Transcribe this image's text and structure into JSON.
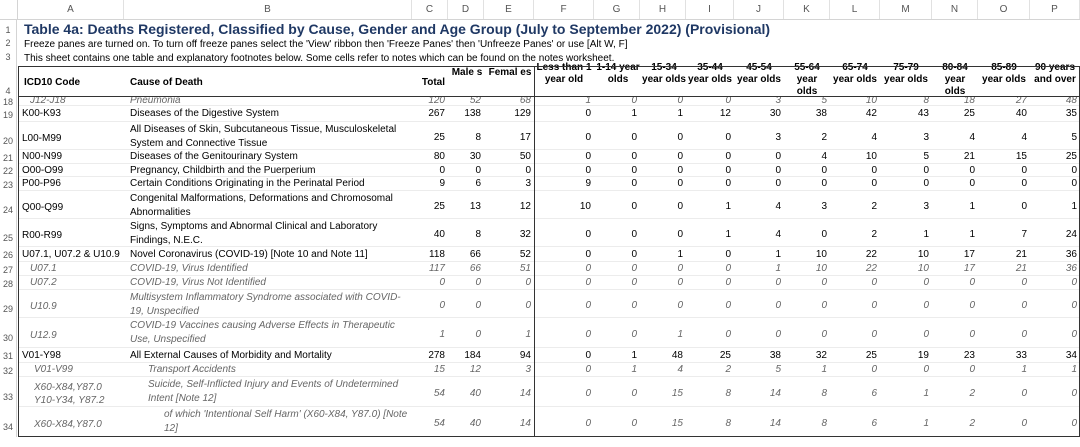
{
  "sheet": {
    "col_letters": [
      "A",
      "B",
      "C",
      "D",
      "E",
      "F",
      "G",
      "H",
      "I",
      "J",
      "K",
      "L",
      "M",
      "N",
      "O",
      "P"
    ],
    "row_numbers": {
      "r1": "1",
      "r2": "2",
      "r3": "3",
      "r4": "4"
    },
    "title": "Table 4a: Deaths Registered, Classified by Cause, Gender and Age Group (July to September 2022) (Provisional)",
    "note1": "Freeze panes are turned on. To turn off freeze panes select the 'View' ribbon then 'Freeze Panes' then 'Unfreeze Panes' or use [Alt W, F]",
    "note2": "This sheet contains one table and explanatory footnotes below. Some cells refer to notes which can be found on the notes worksheet."
  },
  "headers": {
    "icd": "ICD10 Code",
    "cause": "Cause of Death",
    "total": "Total",
    "male": "Male s",
    "female": "Femal es",
    "age1": "Less than 1 year old",
    "age2": "1-14 year olds",
    "age3": "15-34 year olds",
    "age4": "35-44 year olds",
    "age5": "45-54 year olds",
    "age6": "55-64 year olds",
    "age7": "65-74 year olds",
    "age8": "75-79 year olds",
    "age9": "80-84 year olds",
    "age10": "85-89 year olds",
    "age11": "90 years and over"
  },
  "rows": [
    {
      "n": "18",
      "code": "J12-J18",
      "cause": "Pneumonia",
      "style": "sub",
      "vals": [
        "120",
        "52",
        "68",
        "1",
        "0",
        "0",
        "0",
        "3",
        "5",
        "10",
        "8",
        "18",
        "27",
        "48"
      ]
    },
    {
      "n": "19",
      "code": "K00-K93",
      "cause": "Diseases of the Digestive System",
      "style": "",
      "vals": [
        "267",
        "138",
        "129",
        "0",
        "1",
        "1",
        "12",
        "30",
        "38",
        "42",
        "43",
        "25",
        "40",
        "35"
      ]
    },
    {
      "n": "20",
      "code": "L00-M99",
      "cause": "All Diseases of Skin, Subcutaneous Tissue, Musculoskeletal System and Connective Tissue",
      "style": "",
      "vals": [
        "25",
        "8",
        "17",
        "0",
        "0",
        "0",
        "0",
        "3",
        "2",
        "4",
        "3",
        "4",
        "4",
        "5"
      ]
    },
    {
      "n": "21",
      "code": "N00-N99",
      "cause": "Diseases of the Genitourinary System",
      "style": "",
      "vals": [
        "80",
        "30",
        "50",
        "0",
        "0",
        "0",
        "0",
        "0",
        "4",
        "10",
        "5",
        "21",
        "15",
        "25"
      ]
    },
    {
      "n": "22",
      "code": "O00-O99",
      "cause": "Pregnancy, Childbirth and the Puerperium",
      "style": "",
      "vals": [
        "0",
        "0",
        "0",
        "0",
        "0",
        "0",
        "0",
        "0",
        "0",
        "0",
        "0",
        "0",
        "0",
        "0"
      ]
    },
    {
      "n": "23",
      "code": "P00-P96",
      "cause": "Certain Conditions Originating in the Perinatal Period",
      "style": "",
      "vals": [
        "9",
        "6",
        "3",
        "9",
        "0",
        "0",
        "0",
        "0",
        "0",
        "0",
        "0",
        "0",
        "0",
        "0"
      ]
    },
    {
      "n": "24",
      "code": "Q00-Q99",
      "cause": "Congenital Malformations, Deformations and Chromosomal Abnormalities",
      "style": "",
      "vals": [
        "25",
        "13",
        "12",
        "10",
        "0",
        "0",
        "1",
        "4",
        "3",
        "2",
        "3",
        "1",
        "0",
        "1"
      ]
    },
    {
      "n": "25",
      "code": "R00-R99",
      "cause": "Signs, Symptoms and Abnormal Clinical and Laboratory Findings, N.E.C.",
      "style": "",
      "vals": [
        "40",
        "8",
        "32",
        "0",
        "0",
        "0",
        "1",
        "4",
        "0",
        "2",
        "1",
        "1",
        "7",
        "24"
      ]
    },
    {
      "n": "26",
      "code": "U07.1, U07.2 & U10.9",
      "cause": "Novel Coronavirus (COVID-19) [Note 10 and Note 11]",
      "style": "",
      "vals": [
        "118",
        "66",
        "52",
        "0",
        "0",
        "1",
        "0",
        "1",
        "10",
        "22",
        "10",
        "17",
        "21",
        "36"
      ]
    },
    {
      "n": "27",
      "code": "U07.1",
      "cause": "COVID-19, Virus Identified",
      "style": "sub",
      "vals": [
        "117",
        "66",
        "51",
        "0",
        "0",
        "0",
        "0",
        "1",
        "10",
        "22",
        "10",
        "17",
        "21",
        "36"
      ]
    },
    {
      "n": "28",
      "code": "U07.2",
      "cause": "COVID-19, Virus Not Identified",
      "style": "sub",
      "vals": [
        "0",
        "0",
        "0",
        "0",
        "0",
        "0",
        "0",
        "0",
        "0",
        "0",
        "0",
        "0",
        "0",
        "0"
      ]
    },
    {
      "n": "29",
      "code": "U10.9",
      "cause": "Multisystem Inflammatory Syndrome associated with COVID-19, Unspecified",
      "style": "sub",
      "vals": [
        "0",
        "0",
        "0",
        "0",
        "0",
        "0",
        "0",
        "0",
        "0",
        "0",
        "0",
        "0",
        "0",
        "0"
      ]
    },
    {
      "n": "30",
      "code": "U12.9",
      "cause": "COVID-19 Vaccines causing Adverse Effects in Therapeutic Use, Unspecified",
      "style": "sub",
      "vals": [
        "1",
        "0",
        "1",
        "0",
        "0",
        "1",
        "0",
        "0",
        "0",
        "0",
        "0",
        "0",
        "0",
        "0"
      ]
    },
    {
      "n": "31",
      "code": "V01-Y98",
      "cause": "All External Causes of Morbidity and Mortality",
      "style": "",
      "vals": [
        "278",
        "184",
        "94",
        "0",
        "1",
        "48",
        "25",
        "38",
        "32",
        "25",
        "19",
        "23",
        "33",
        "34"
      ]
    },
    {
      "n": "32",
      "code": "V01-V99",
      "cause": "Transport Accidents",
      "style": "sub2",
      "vals": [
        "15",
        "12",
        "3",
        "0",
        "1",
        "4",
        "2",
        "5",
        "1",
        "0",
        "0",
        "0",
        "1",
        "1"
      ]
    },
    {
      "n": "33",
      "code": "X60-X84,Y87.0 Y10-Y34, Y87.2",
      "cause": "Suicide, Self-Inflicted Injury and Events of Undetermined Intent [Note 12]",
      "style": "sub2",
      "vals": [
        "54",
        "40",
        "14",
        "0",
        "0",
        "15",
        "8",
        "14",
        "8",
        "6",
        "1",
        "2",
        "0",
        "0"
      ]
    },
    {
      "n": "34",
      "code": "X60-X84,Y87.0",
      "cause": "of which 'Intentional Self Harm' (X60-X84, Y87.0) [Note 12]",
      "style": "sub3",
      "vals": [
        "54",
        "40",
        "14",
        "0",
        "0",
        "15",
        "8",
        "14",
        "8",
        "6",
        "1",
        "2",
        "0",
        "0"
      ]
    }
  ]
}
